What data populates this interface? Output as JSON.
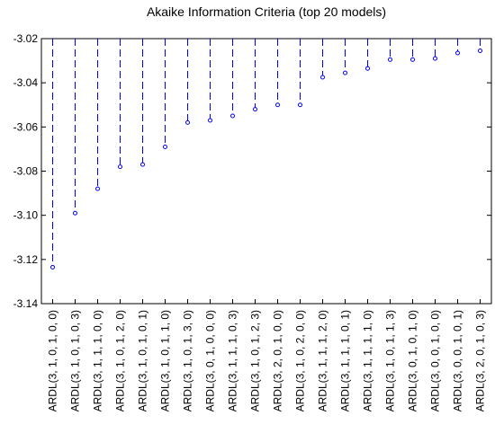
{
  "chart_data": {
    "type": "dropline",
    "title": "Akaike Information Criteria (top 20 models)",
    "categories": [
      "ARDL(3, 1, 0, 1, 0, 0)",
      "ARDL(3, 1, 0, 1, 0, 3)",
      "ARDL(3, 1, 1, 1, 0, 0)",
      "ARDL(3, 1, 0, 1, 2, 0)",
      "ARDL(3, 1, 0, 1, 0, 1)",
      "ARDL(3, 1, 0, 1, 1, 0)",
      "ARDL(3, 1, 0, 1, 3, 0)",
      "ARDL(3, 0, 1, 0, 0, 0)",
      "ARDL(3, 1, 1, 1, 0, 3)",
      "ARDL(3, 1, 0, 1, 2, 3)",
      "ARDL(3, 2, 0, 1, 0, 0)",
      "ARDL(3, 1, 0, 2, 0, 0)",
      "ARDL(3, 1, 1, 1, 2, 0)",
      "ARDL(3, 1, 1, 1, 0, 1)",
      "ARDL(3, 1, 1, 1, 1, 0)",
      "ARDL(3, 1, 0, 1, 1, 3)",
      "ARDL(3, 0, 1, 0, 1, 0)",
      "ARDL(3, 0, 0, 1, 0, 0)",
      "ARDL(3, 0, 0, 1, 0, 1)",
      "ARDL(3, 2, 0, 1, 0, 3)"
    ],
    "values": [
      -3.1235,
      -3.099,
      -3.088,
      -3.078,
      -3.077,
      -3.069,
      -3.058,
      -3.057,
      -3.055,
      -3.052,
      -3.05,
      -3.05,
      -3.0375,
      -3.0355,
      -3.0335,
      -3.0295,
      -3.0295,
      -3.029,
      -3.0265,
      -3.0255
    ],
    "color": "#0000ff",
    "ylim": [
      -3.14,
      -3.02
    ],
    "yticks": [
      -3.14,
      -3.12,
      {
        "value": -3.1,
        "label": "-3.10"
      },
      -3.08,
      -3.06,
      -3.04,
      -3.02
    ],
    "grid": false
  }
}
